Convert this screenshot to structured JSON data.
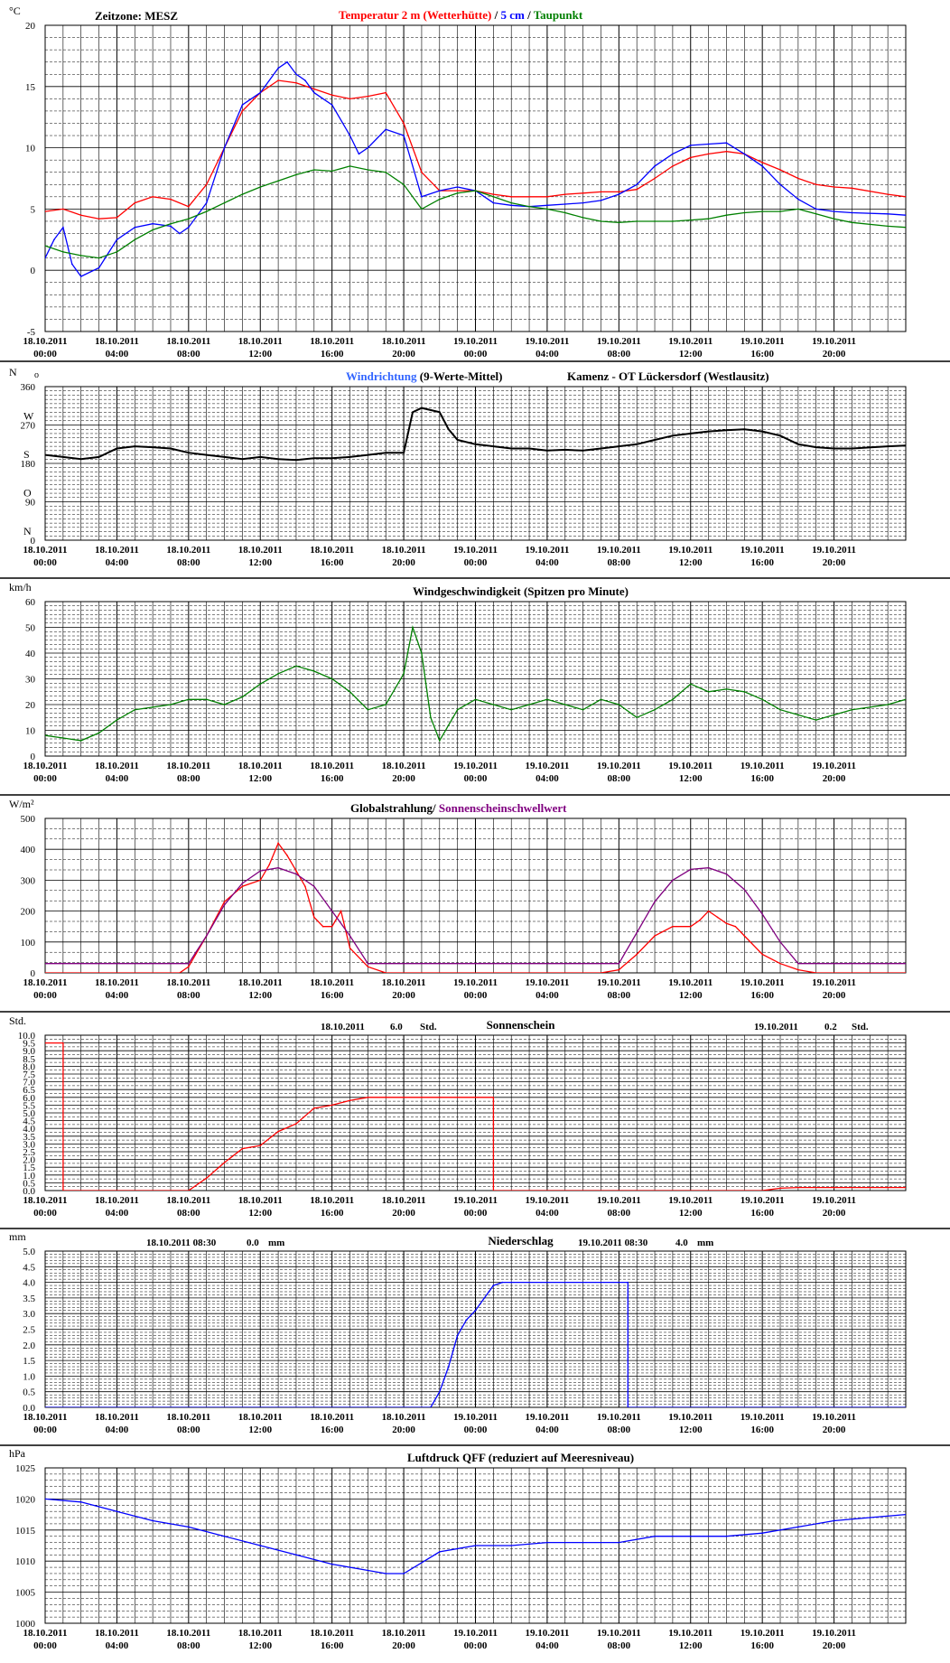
{
  "x_axis": {
    "ticks": [
      {
        "date": "18.10.2011",
        "time": "00:00",
        "hour": 0
      },
      {
        "date": "18.10.2011",
        "time": "04:00",
        "hour": 4
      },
      {
        "date": "18.10.2011",
        "time": "08:00",
        "hour": 8
      },
      {
        "date": "18.10.2011",
        "time": "12:00",
        "hour": 12
      },
      {
        "date": "18.10.2011",
        "time": "16:00",
        "hour": 16
      },
      {
        "date": "18.10.2011",
        "time": "20:00",
        "hour": 20
      },
      {
        "date": "19.10.2011",
        "time": "00:00",
        "hour": 24
      },
      {
        "date": "19.10.2011",
        "time": "04:00",
        "hour": 28
      },
      {
        "date": "19.10.2011",
        "time": "08:00",
        "hour": 32
      },
      {
        "date": "19.10.2011",
        "time": "12:00",
        "hour": 36
      },
      {
        "date": "19.10.2011",
        "time": "16:00",
        "hour": 40
      },
      {
        "date": "19.10.2011",
        "time": "20:00",
        "hour": 44
      }
    ],
    "range_hours": [
      0,
      48
    ]
  },
  "colors": {
    "red": "#ff0000",
    "blue": "#0000ff",
    "lightblue": "#3366ff",
    "green": "#008000",
    "purple": "#800080",
    "black": "#000000",
    "grid": "#000000"
  },
  "chart_data": [
    {
      "id": "temperature",
      "type": "line",
      "unit": "°C",
      "ylim": [
        -5,
        20
      ],
      "yticks": [
        -5,
        0,
        5,
        10,
        15,
        20
      ],
      "ytick_labels": [
        "-5",
        "0",
        "5",
        "10",
        "15",
        "20"
      ],
      "header_left": "Zeitzone: MESZ",
      "title_parts": [
        {
          "text": "Temperatur 2 m (Wetterhütte)",
          "color": "red"
        },
        {
          "text": " / ",
          "color": "black"
        },
        {
          "text": "5 cm",
          "color": "blue"
        },
        {
          "text": " / ",
          "color": "black"
        },
        {
          "text": "Taupunkt",
          "color": "green"
        }
      ],
      "series": [
        {
          "color": "red",
          "x": [
            0,
            1,
            2,
            3,
            4,
            5,
            6,
            7,
            8,
            9,
            10,
            11,
            12,
            13,
            14,
            15,
            16,
            17,
            18,
            19,
            20,
            21,
            22,
            23,
            24,
            25,
            26,
            27,
            28,
            29,
            30,
            31,
            32,
            33,
            34,
            35,
            36,
            37,
            38,
            39,
            40,
            41,
            42,
            43,
            44,
            45,
            47,
            48
          ],
          "y": [
            4.8,
            5,
            4.5,
            4.2,
            4.3,
            5.5,
            6,
            5.8,
            5.2,
            7,
            10,
            13,
            14.5,
            15.5,
            15.3,
            14.8,
            14.3,
            14,
            14.2,
            14.5,
            12,
            8,
            6.5,
            6.5,
            6.5,
            6.2,
            6,
            6,
            6,
            6.2,
            6.3,
            6.4,
            6.4,
            6.6,
            7.5,
            8.5,
            9.2,
            9.5,
            9.7,
            9.5,
            8.8,
            8.2,
            7.5,
            7,
            6.8,
            6.7,
            6.2,
            6
          ]
        },
        {
          "color": "blue",
          "x": [
            0,
            0.5,
            1,
            1.5,
            2,
            3,
            4,
            5,
            6,
            7,
            7.5,
            8,
            9,
            10,
            11,
            12,
            13,
            13.5,
            14,
            14.5,
            15,
            16,
            17,
            17.5,
            18,
            19,
            20,
            21,
            22,
            23,
            24,
            25,
            26,
            27,
            28,
            29,
            30,
            31,
            32,
            33,
            34,
            35,
            36,
            37,
            38,
            39,
            40,
            41,
            42,
            43,
            44,
            45,
            47,
            48
          ],
          "y": [
            1,
            2.5,
            3.5,
            0.5,
            -0.5,
            0.2,
            2.5,
            3.5,
            3.8,
            3.6,
            3,
            3.5,
            5.5,
            10,
            13.5,
            14.5,
            16.5,
            17,
            16,
            15.5,
            14.5,
            13.5,
            11,
            9.5,
            10,
            11.5,
            11,
            6,
            6.5,
            6.8,
            6.5,
            5.5,
            5.3,
            5.2,
            5.3,
            5.4,
            5.5,
            5.7,
            6.2,
            7,
            8.5,
            9.5,
            10.2,
            10.3,
            10.4,
            9.5,
            8.5,
            7,
            5.8,
            5,
            4.8,
            4.7,
            4.6,
            4.5
          ]
        },
        {
          "color": "green",
          "x": [
            0,
            1,
            2,
            3,
            4,
            5,
            6,
            7,
            8,
            9,
            10,
            11,
            12,
            13,
            14,
            15,
            16,
            17,
            18,
            19,
            20,
            21,
            22,
            23,
            24,
            25,
            26,
            27,
            28,
            29,
            30,
            31,
            32,
            33,
            34,
            35,
            36,
            37,
            38,
            39,
            40,
            41,
            42,
            43,
            44,
            45,
            47,
            48
          ],
          "y": [
            2,
            1.5,
            1.2,
            1,
            1.5,
            2.5,
            3.3,
            3.8,
            4.2,
            4.8,
            5.5,
            6.2,
            6.8,
            7.3,
            7.8,
            8.2,
            8.1,
            8.5,
            8.2,
            8,
            7,
            5,
            5.8,
            6.3,
            6.5,
            6,
            5.5,
            5.2,
            5,
            4.7,
            4.3,
            4,
            3.9,
            4,
            4,
            4,
            4.1,
            4.2,
            4.5,
            4.7,
            4.8,
            4.8,
            5,
            4.6,
            4.2,
            3.9,
            3.6,
            3.5
          ]
        }
      ]
    },
    {
      "id": "wind_direction",
      "type": "line",
      "unit": "N",
      "ylim": [
        0,
        360
      ],
      "yticks": [
        0,
        90,
        180,
        270,
        360
      ],
      "ytick_labels": [
        "0",
        "90",
        "180",
        "270",
        "360"
      ],
      "compass_labels": [
        {
          "label": "N",
          "value": 0
        },
        {
          "label": "O",
          "value": 90
        },
        {
          "label": "S",
          "value": 180
        },
        {
          "label": "W",
          "value": 270
        }
      ],
      "unit_suffix": "o",
      "title_parts": [
        {
          "text": "Windrichtung",
          "color": "lightblue"
        },
        {
          "text": " (9-Werte-Mittel)",
          "color": "black"
        }
      ],
      "header_right": "Kamenz - OT Lückersdorf (Westlausitz)",
      "series": [
        {
          "color": "black",
          "x": [
            0,
            1,
            2,
            3,
            4,
            5,
            6,
            7,
            8,
            9,
            10,
            11,
            12,
            13,
            14,
            15,
            16,
            17,
            18,
            19,
            20,
            20.5,
            21,
            22,
            22.5,
            23,
            24,
            25,
            26,
            27,
            28,
            29,
            30,
            31,
            32,
            33,
            34,
            35,
            36,
            37,
            38,
            39,
            40,
            41,
            42,
            43,
            44,
            45,
            47,
            48
          ],
          "y": [
            200,
            195,
            190,
            195,
            215,
            220,
            218,
            215,
            205,
            200,
            195,
            190,
            195,
            190,
            188,
            192,
            192,
            195,
            200,
            205,
            205,
            300,
            310,
            300,
            260,
            235,
            225,
            220,
            215,
            215,
            210,
            212,
            210,
            215,
            220,
            225,
            235,
            245,
            250,
            255,
            258,
            260,
            255,
            245,
            225,
            218,
            215,
            215,
            220,
            222
          ]
        }
      ]
    },
    {
      "id": "wind_speed",
      "type": "line",
      "unit": "km/h",
      "ylim": [
        0,
        60
      ],
      "yticks": [
        0,
        10,
        20,
        30,
        40,
        50,
        60
      ],
      "ytick_labels": [
        "0",
        "10",
        "20",
        "30",
        "40",
        "50",
        "60"
      ],
      "title": "Windgeschwindigkeit (Spitzen pro Minute)",
      "series": [
        {
          "color": "green",
          "x": [
            0,
            1,
            2,
            3,
            4,
            5,
            6,
            7,
            8,
            9,
            10,
            11,
            12,
            13,
            14,
            15,
            16,
            17,
            18,
            19,
            20,
            20.5,
            21,
            21.5,
            22,
            22.5,
            23,
            24,
            25,
            26,
            27,
            28,
            29,
            30,
            31,
            32,
            33,
            34,
            35,
            36,
            37,
            38,
            39,
            40,
            41,
            42,
            43,
            44,
            45,
            47,
            48
          ],
          "y": [
            8,
            7,
            6,
            9,
            14,
            18,
            19,
            20,
            22,
            22,
            20,
            23,
            28,
            32,
            35,
            33,
            30,
            25,
            18,
            20,
            32,
            50,
            40,
            15,
            6,
            12,
            18,
            22,
            20,
            18,
            20,
            22,
            20,
            18,
            22,
            20,
            15,
            18,
            22,
            28,
            25,
            26,
            25,
            22,
            18,
            16,
            14,
            16,
            18,
            20,
            22
          ]
        }
      ]
    },
    {
      "id": "radiation",
      "type": "line",
      "unit": "W/m²",
      "ylim": [
        0,
        500
      ],
      "yticks": [
        0,
        100,
        200,
        300,
        400,
        500
      ],
      "ytick_labels": [
        "0",
        "100",
        "200",
        "300",
        "400",
        "500"
      ],
      "title_parts": [
        {
          "text": "Globalstrahlung/ ",
          "color": "black"
        },
        {
          "text": "Sonnenscheinschwellwert",
          "color": "purple"
        }
      ],
      "series": [
        {
          "color": "red",
          "x": [
            0,
            7.5,
            8,
            9,
            10,
            11,
            12,
            12.5,
            13,
            13.5,
            14,
            14.5,
            15,
            15.5,
            16,
            16.5,
            17,
            18,
            19,
            31,
            32,
            33,
            34,
            35,
            36,
            36.5,
            37,
            37.5,
            38,
            38.5,
            39,
            40,
            41,
            42,
            43,
            48
          ],
          "y": [
            0,
            0,
            20,
            120,
            230,
            280,
            300,
            350,
            420,
            380,
            330,
            280,
            180,
            150,
            150,
            200,
            80,
            20,
            0,
            0,
            10,
            60,
            120,
            150,
            150,
            170,
            200,
            180,
            160,
            150,
            120,
            60,
            30,
            10,
            0,
            0
          ]
        },
        {
          "color": "purple",
          "x": [
            0,
            8,
            9,
            10,
            11,
            12,
            13,
            14,
            15,
            16,
            17,
            18,
            32,
            33,
            34,
            35,
            36,
            37,
            38,
            39,
            40,
            41,
            42,
            48
          ],
          "y": [
            30,
            30,
            120,
            220,
            290,
            330,
            340,
            320,
            280,
            200,
            120,
            30,
            30,
            130,
            230,
            300,
            335,
            340,
            320,
            270,
            190,
            100,
            30,
            30
          ]
        }
      ]
    },
    {
      "id": "sunshine",
      "type": "line",
      "unit": "Std.",
      "ylim": [
        0,
        10
      ],
      "yticks": [
        0,
        0.5,
        1,
        1.5,
        2,
        2.5,
        3,
        3.5,
        4,
        4.5,
        5,
        5.5,
        6,
        6.5,
        7,
        7.5,
        8,
        8.5,
        9,
        9.5,
        10
      ],
      "ytick_labels": [
        "0.0",
        "0.5",
        "1.0",
        "1.5",
        "2.0",
        "2.5",
        "3.0",
        "3.5",
        "4.0",
        "4.5",
        "5.0",
        "5.5",
        "6.0",
        "6.5",
        "7.0",
        "7.5",
        "8.0",
        "8.5",
        "9.0",
        "9.5",
        "10.0"
      ],
      "title": "Sonnenschein",
      "annotations": [
        {
          "date": "18.10.2011",
          "value": "6.0",
          "unit": "Std."
        },
        {
          "date": "19.10.2011",
          "value": "0.2",
          "unit": "Std."
        }
      ],
      "series": [
        {
          "color": "red",
          "x": [
            0,
            1,
            1,
            8,
            9,
            10,
            11,
            12,
            13,
            14,
            15,
            16,
            17,
            18,
            19,
            20,
            21,
            22,
            23,
            24,
            25,
            25,
            40,
            41,
            42,
            44,
            47,
            48
          ],
          "y": [
            9.5,
            9.5,
            0,
            0,
            0.8,
            1.8,
            2.7,
            2.9,
            3.8,
            4.3,
            5.3,
            5.5,
            5.8,
            6,
            6,
            6,
            6,
            6,
            6,
            6,
            6,
            0,
            0,
            0.15,
            0.2,
            0.2,
            0.2,
            0.2
          ]
        }
      ]
    },
    {
      "id": "precipitation",
      "type": "line",
      "unit": "mm",
      "ylim": [
        0,
        5
      ],
      "yticks": [
        0,
        0.5,
        1,
        1.5,
        2,
        2.5,
        3,
        3.5,
        4,
        4.5,
        5
      ],
      "ytick_labels": [
        "0.0",
        "0.5",
        "1.0",
        "1.5",
        "2.0",
        "2.5",
        "3.0",
        "3.5",
        "4.0",
        "4.5",
        "5.0"
      ],
      "title": "Niederschlag",
      "annotations": [
        {
          "date": "18.10.2011 08:30",
          "value": "0.0",
          "unit": "mm"
        },
        {
          "date": "19.10.2011 08:30",
          "value": "4.0",
          "unit": "mm"
        }
      ],
      "series": [
        {
          "color": "blue",
          "x": [
            0,
            21.5,
            22,
            22.5,
            23,
            23.5,
            24,
            24.5,
            25,
            25.5,
            26,
            32.5,
            32.5,
            48
          ],
          "y": [
            0,
            0,
            0.5,
            1.3,
            2.3,
            2.8,
            3.1,
            3.5,
            3.9,
            4,
            4,
            4,
            0,
            0
          ]
        }
      ]
    },
    {
      "id": "pressure",
      "type": "line",
      "unit": "hPa",
      "ylim": [
        1000,
        1025
      ],
      "yticks": [
        1000,
        1005,
        1010,
        1015,
        1020,
        1025
      ],
      "ytick_labels": [
        "1000",
        "1005",
        "1010",
        "1015",
        "1020",
        "1025"
      ],
      "title": "Luftdruck QFF (reduziert auf Meeresniveau)",
      "series": [
        {
          "color": "blue",
          "x": [
            0,
            2,
            4,
            6,
            8,
            10,
            12,
            14,
            16,
            18,
            19,
            20,
            22,
            24,
            26,
            28,
            30,
            32,
            34,
            36,
            38,
            40,
            42,
            44,
            46,
            48
          ],
          "y": [
            1020,
            1019.5,
            1018,
            1016.5,
            1015.5,
            1014,
            1012.5,
            1011,
            1009.5,
            1008.5,
            1008,
            1008,
            1011.5,
            1012.5,
            1012.5,
            1013,
            1013,
            1013,
            1014,
            1014,
            1014,
            1014.5,
            1015.5,
            1016.5,
            1017,
            1017.5
          ]
        }
      ]
    }
  ]
}
